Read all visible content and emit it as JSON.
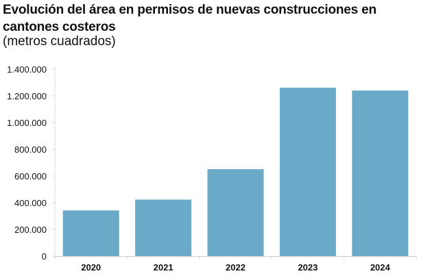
{
  "chart_data": {
    "type": "bar",
    "title": "Evolución del área en permisos de nuevas construcciones en cantones costeros",
    "subtitle": "(metros cuadrados)",
    "xlabel": "",
    "ylabel": "",
    "categories": [
      "2020",
      "2021",
      "2022",
      "2023",
      "2024"
    ],
    "values": [
      342000,
      423000,
      651000,
      1261000,
      1240000
    ],
    "ylim": [
      0,
      1400000
    ],
    "yticks": [
      0,
      200000,
      400000,
      600000,
      800000,
      1000000,
      1200000,
      1400000
    ],
    "ytick_labels": [
      "0",
      "200.000",
      "400.000",
      "600.000",
      "800.000",
      "1.000.000",
      "1.200.000",
      "1.400.000"
    ],
    "grid": false,
    "bar_color": "#6aaac8"
  }
}
